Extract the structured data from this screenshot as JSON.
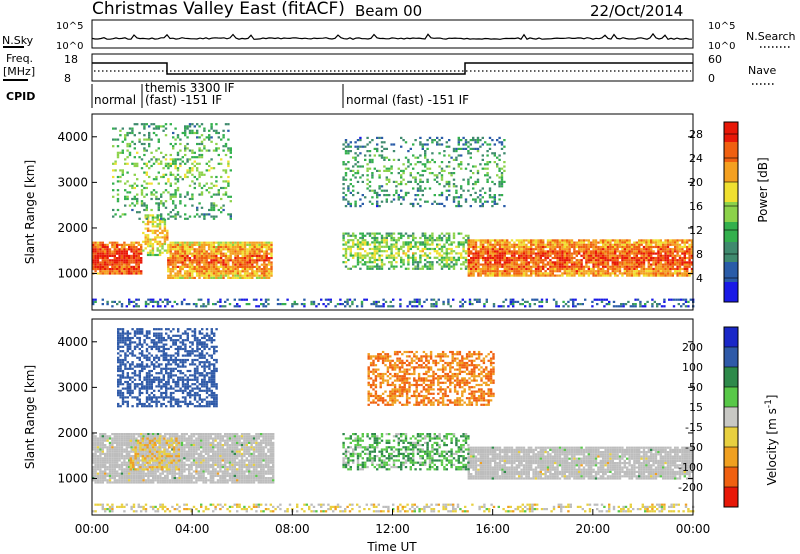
{
  "header": {
    "station": "Christmas Valley East (fitACF)",
    "beam": "Beam 00",
    "date": "22/Oct/2014"
  },
  "strip_labels": {
    "nsky": "N.Sky",
    "nsearch": "N.Search",
    "freq_line1": "Freq.",
    "freq_line2": "[MHz]",
    "nave": "Nave",
    "cpid": "CPID",
    "nsky_ticks": [
      "10^5",
      "10^0"
    ],
    "nsearch_ticks": [
      "10^5",
      "10^0"
    ],
    "freq_ticks": [
      "18",
      "8"
    ],
    "nave_ticks": [
      "60",
      "0"
    ]
  },
  "cpid_segments": [
    {
      "label": "normal",
      "label2": "",
      "start": 0.0,
      "end": 2.0
    },
    {
      "label": "themis 3300 IF",
      "label2": "(fast) -151 IF",
      "start": 2.0,
      "end": 10.0
    },
    {
      "label": "normal (fast) -151 IF",
      "label2": "",
      "start": 10.0,
      "end": 24.0
    }
  ],
  "colors": {
    "power_scale": [
      "#1a1ae6",
      "#2a5ca8",
      "#3f8a6e",
      "#33b04d",
      "#8cd24a",
      "#f0e030",
      "#f4a020",
      "#f06010",
      "#e81808"
    ],
    "velocity_scale": [
      "#1a28c8",
      "#2f5aa8",
      "#2e8a4a",
      "#58c848",
      "#c8c8c4",
      "#e8d040",
      "#f0a020",
      "#f06010",
      "#e81808"
    ],
    "ground_scatter": "#bdbdbd"
  },
  "chart_data": [
    {
      "type": "heatmap",
      "panel": "power",
      "xlabel": "",
      "ylabel": "Slant Range [km]",
      "xlim": [
        0,
        24
      ],
      "ylim": [
        200,
        4500
      ],
      "x_ticks": [],
      "y_ticks": [
        "1000",
        "2000",
        "3000",
        "4000"
      ],
      "colorbar": {
        "label": "Power [dB]",
        "ticks": [
          "4",
          "8",
          "12",
          "16",
          "20",
          "24",
          "28"
        ],
        "range": [
          0,
          30
        ]
      },
      "regions": [
        {
          "t0": 0.0,
          "t1": 2.0,
          "r0": 1000,
          "r1": 1700,
          "level": "strong",
          "value_db": 26
        },
        {
          "t0": 2.0,
          "t1": 3.0,
          "r0": 1400,
          "r1": 2300,
          "level": "mixed",
          "value_db": 18
        },
        {
          "t0": 3.0,
          "t1": 7.2,
          "r0": 900,
          "r1": 1700,
          "level": "strong",
          "value_db": 22
        },
        {
          "t0": 0.8,
          "t1": 5.5,
          "r0": 2200,
          "r1": 4300,
          "level": "patchy",
          "value_db": 12
        },
        {
          "t0": 10.0,
          "t1": 15.0,
          "r0": 1100,
          "r1": 1900,
          "level": "medium",
          "value_db": 14
        },
        {
          "t0": 10.0,
          "t1": 16.5,
          "r0": 2500,
          "r1": 4000,
          "level": "patchy",
          "value_db": 10
        },
        {
          "t0": 15.0,
          "t1": 24.0,
          "r0": 950,
          "r1": 1750,
          "level": "strong",
          "value_db": 24
        },
        {
          "t0": 0.0,
          "t1": 24.0,
          "r0": 300,
          "r1": 450,
          "level": "weak",
          "value_db": 6
        }
      ]
    },
    {
      "type": "heatmap",
      "panel": "velocity",
      "xlabel": "Time UT",
      "ylabel": "Slant Range [km]",
      "xlim": [
        0,
        24
      ],
      "ylim": [
        200,
        4500
      ],
      "x_ticks": [
        "00:00",
        "04:00",
        "08:00",
        "12:00",
        "16:00",
        "20:00",
        "00:00"
      ],
      "y_ticks": [
        "1000",
        "2000",
        "3000",
        "4000"
      ],
      "colorbar": {
        "label": "Velocity [m s^-1]",
        "ticks": [
          "200",
          "100",
          "50",
          "15",
          "-15",
          "-50",
          "-100",
          "-200"
        ],
        "range": [
          -250,
          250
        ]
      },
      "regions": [
        {
          "t0": 0.0,
          "t1": 7.2,
          "r0": 900,
          "r1": 2000,
          "level": "ground",
          "value_ms": 0
        },
        {
          "t0": 15.0,
          "t1": 24.0,
          "r0": 1000,
          "r1": 1700,
          "level": "ground",
          "value_ms": 0
        },
        {
          "t0": 1.5,
          "t1": 3.5,
          "r0": 1200,
          "r1": 1900,
          "level": "away",
          "value_ms": -40
        },
        {
          "t0": 1.0,
          "t1": 5.0,
          "r0": 2600,
          "r1": 4300,
          "level": "toward",
          "value_ms": 150
        },
        {
          "t0": 10.0,
          "t1": 15.0,
          "r0": 1200,
          "r1": 2000,
          "level": "toward",
          "value_ms": 40
        },
        {
          "t0": 11.0,
          "t1": 16.0,
          "r0": 2600,
          "r1": 3800,
          "level": "mixed",
          "value_ms": -100
        },
        {
          "t0": 0.0,
          "t1": 24.0,
          "r0": 300,
          "r1": 450,
          "level": "weak",
          "value_ms": -20
        }
      ]
    }
  ]
}
